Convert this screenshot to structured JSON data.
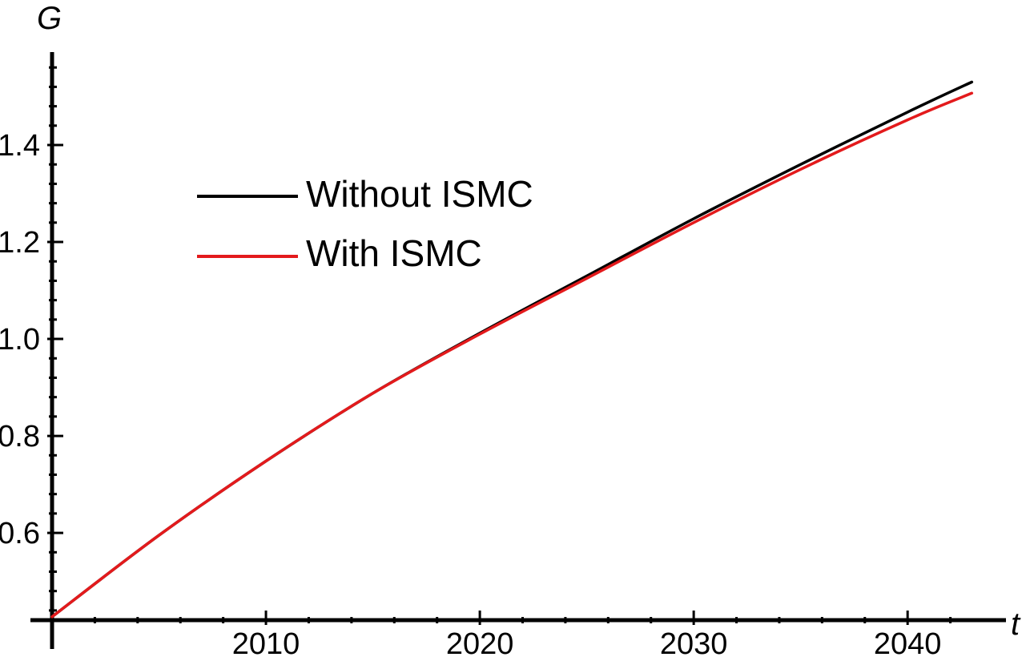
{
  "chart_data": {
    "type": "line",
    "title": "",
    "xlabel": "t",
    "ylabel": "G",
    "xlim": [
      2000,
      2044
    ],
    "ylim": [
      0.42,
      1.6
    ],
    "x_ticks": [
      2010,
      2020,
      2030,
      2040
    ],
    "y_ticks": [
      0.6,
      0.8,
      1.0,
      1.2,
      1.4
    ],
    "x_tick_labels": [
      "2010",
      "2020",
      "2030",
      "2040"
    ],
    "y_tick_labels": [
      "0.6",
      "0.8",
      "1.0",
      "1.2",
      "1.4"
    ],
    "grid": false,
    "legend_position": "upper-left",
    "series": [
      {
        "name": "Without ISMC",
        "color": "#000000",
        "x": [
          2000,
          2005,
          2010,
          2015,
          2020,
          2025,
          2030,
          2035,
          2040,
          2043
        ],
        "y": [
          0.427,
          0.595,
          0.748,
          0.888,
          1.012,
          1.13,
          1.248,
          1.36,
          1.468,
          1.53
        ]
      },
      {
        "name": "With ISMC",
        "color": "#e31a1c",
        "x": [
          2000,
          2005,
          2010,
          2015,
          2020,
          2025,
          2030,
          2035,
          2040,
          2043
        ],
        "y": [
          0.427,
          0.595,
          0.748,
          0.888,
          1.01,
          1.125,
          1.24,
          1.35,
          1.452,
          1.507
        ]
      }
    ]
  }
}
